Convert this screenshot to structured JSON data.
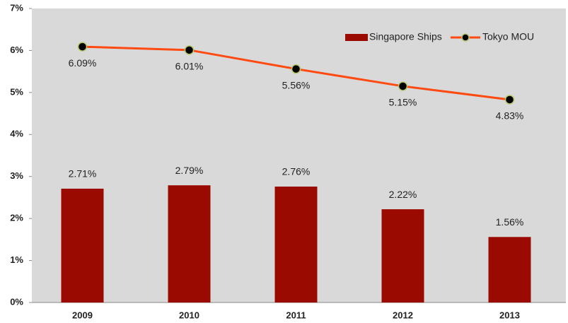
{
  "chart_data": {
    "type": "bar",
    "categories": [
      "2009",
      "2010",
      "2011",
      "2012",
      "2013"
    ],
    "series": [
      {
        "name": "Singapore Ships",
        "type": "bar",
        "color": "#9b0a00",
        "values": [
          2.71,
          2.79,
          2.76,
          2.22,
          1.56
        ],
        "value_labels": [
          "2.71%",
          "2.79%",
          "2.76%",
          "2.22%",
          "1.56%"
        ]
      },
      {
        "name": "Tokyo MOU",
        "type": "line",
        "color": "#ff4a12",
        "values": [
          6.09,
          6.01,
          5.56,
          5.15,
          4.83
        ],
        "value_labels": [
          "6.09%",
          "6.01%",
          "5.56%",
          "5.15%",
          "4.83%"
        ]
      }
    ],
    "ylim": [
      0,
      7
    ],
    "yticks": [
      {
        "value": 0,
        "label": "0%"
      },
      {
        "value": 1,
        "label": "1%"
      },
      {
        "value": 2,
        "label": "2%"
      },
      {
        "value": 3,
        "label": "3%"
      },
      {
        "value": 4,
        "label": "4%"
      },
      {
        "value": 5,
        "label": "5%"
      },
      {
        "value": 6,
        "label": "6%"
      },
      {
        "value": 7,
        "label": "7%"
      }
    ],
    "legend": "top-right"
  }
}
